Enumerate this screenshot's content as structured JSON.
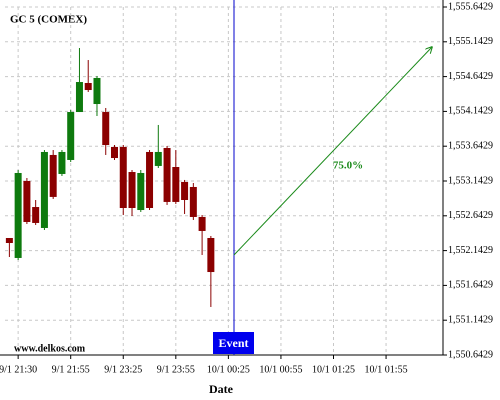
{
  "chart_data": {
    "type": "candlestick",
    "title": "GC 5 (COMEX)",
    "watermark": "www.delkos.com",
    "x_label": "Date",
    "event_label": "Event",
    "annotation": "75.0%",
    "up_color": "#0e7a0e",
    "down_color": "#8b0000",
    "grid": true,
    "categories": [
      null,
      "9/1 21:30",
      null,
      null,
      null,
      null,
      null,
      "9/1 21:55",
      null,
      null,
      null,
      null,
      null,
      "9/1 23:25",
      null,
      null,
      null,
      null,
      null,
      "9/1 23:55",
      null,
      null,
      null,
      null,
      null,
      "10/1 00:25",
      null,
      null,
      null,
      null,
      null,
      "10/1 00:55",
      null,
      null,
      null,
      null,
      null,
      "10/1 01:25",
      null,
      null,
      null,
      null,
      null,
      "10/1 01:55",
      null,
      null,
      null,
      null,
      null,
      null
    ],
    "open": [
      1552.324,
      1552.037,
      1553.143,
      1552.769,
      1552.468,
      1553.517,
      1553.244,
      1553.445,
      1554.134,
      1554.551,
      1554.249,
      1554.134,
      1553.632,
      1553.632,
      1553.272,
      1552.726,
      1553.56,
      1553.359,
      1553.617,
      1553.344,
      1553.129,
      1553.057,
      1552.626,
      1552.324,
      null,
      null,
      null,
      null,
      null,
      null,
      null,
      null,
      null,
      null,
      null,
      null,
      null,
      null,
      null,
      null,
      null,
      null,
      null,
      null,
      null,
      null,
      null,
      null,
      null,
      null
    ],
    "high": [
      1552.324,
      1553.301,
      1553.186,
      1552.87,
      1553.588,
      1553.588,
      1553.588,
      1554.163,
      1555.054,
      1554.881,
      1554.652,
      1554.192,
      1553.66,
      1553.66,
      1553.301,
      1553.301,
      1553.588,
      1553.948,
      1553.646,
      1553.588,
      1553.158,
      1553.114,
      1552.654,
      1552.353,
      null,
      null,
      null,
      null,
      null,
      null,
      null,
      null,
      null,
      null,
      null,
      null,
      null,
      null,
      null,
      null,
      null,
      null,
      null,
      null,
      null,
      null,
      null,
      null,
      null,
      null
    ],
    "low": [
      1552.051,
      1552.008,
      1552.525,
      1552.511,
      1552.439,
      1552.885,
      1553.215,
      1553.416,
      1554.134,
      1554.422,
      1554.077,
      1553.517,
      1553.445,
      1552.654,
      1552.64,
      1552.698,
      1552.726,
      1553.33,
      1552.799,
      1552.813,
      1552.669,
      1552.583,
      1552.08,
      1551.333,
      null,
      null,
      null,
      null,
      null,
      null,
      null,
      null,
      null,
      null,
      null,
      null,
      null,
      null,
      null,
      null,
      null,
      null,
      null,
      null,
      null,
      null,
      null,
      null,
      null,
      null
    ],
    "close": [
      1552.252,
      1553.258,
      1552.554,
      1552.54,
      1553.56,
      1552.914,
      1553.56,
      1554.134,
      1554.565,
      1554.45,
      1554.623,
      1553.66,
      1553.473,
      1552.755,
      1552.755,
      1553.258,
      1552.755,
      1553.56,
      1552.842,
      1552.842,
      1552.87,
      1552.626,
      1552.425,
      1551.835,
      null,
      null,
      null,
      null,
      null,
      null,
      null,
      null,
      null,
      null,
      null,
      null,
      null,
      null,
      null,
      null,
      null,
      null,
      null,
      null,
      null,
      null,
      null,
      null,
      null,
      null
    ],
    "ylim": [
      1550.6429,
      1555.6429
    ],
    "yticks": [
      {
        "value": 1550.6429,
        "label": "1,550.6429"
      },
      {
        "value": 1551.1429,
        "label": "1,551.1429"
      },
      {
        "value": 1551.6429,
        "label": "1,551.6429"
      },
      {
        "value": 1552.1429,
        "label": "1,552.1429"
      },
      {
        "value": 1552.6429,
        "label": "1,552.6429"
      },
      {
        "value": 1553.1429,
        "label": "1,553.1429"
      },
      {
        "value": 1553.6429,
        "label": "1,553.6429"
      },
      {
        "value": 1554.1429,
        "label": "1,554.1429"
      },
      {
        "value": 1554.6429,
        "label": "1,554.6429"
      },
      {
        "value": 1555.1429,
        "label": "1,555.1429"
      },
      {
        "value": 1555.6429,
        "label": "1,555.6429"
      }
    ]
  }
}
